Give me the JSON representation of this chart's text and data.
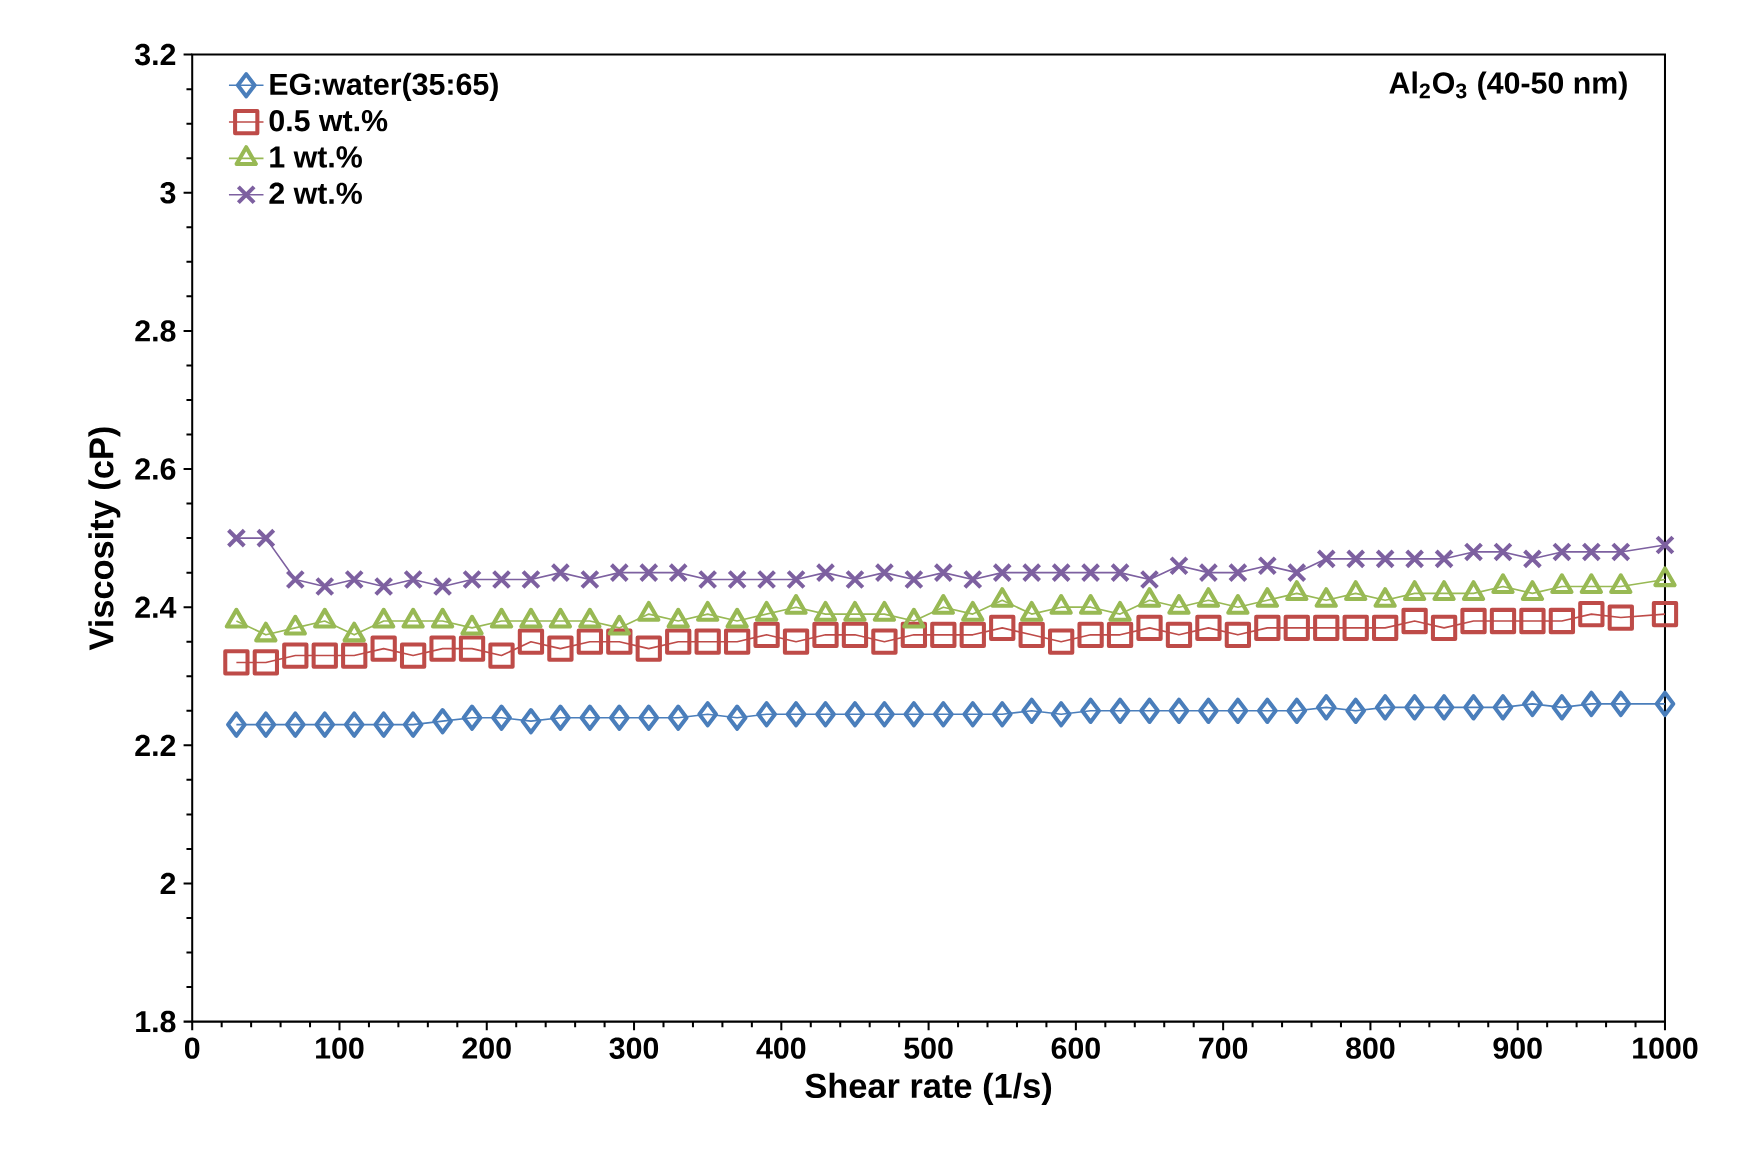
{
  "chart_data": {
    "type": "line",
    "xlabel": "Shear rate (1/s)",
    "ylabel": "Viscosity (cP)",
    "annotations": [
      "Al$_{2}$O$_{3}$ (40-50 nm)"
    ],
    "x": [
      30,
      50,
      70,
      90,
      110,
      130,
      150,
      170,
      190,
      210,
      230,
      250,
      270,
      290,
      310,
      330,
      350,
      370,
      390,
      410,
      430,
      450,
      470,
      490,
      510,
      530,
      550,
      570,
      590,
      610,
      630,
      650,
      670,
      690,
      710,
      730,
      750,
      770,
      790,
      810,
      830,
      850,
      870,
      890,
      910,
      930,
      950,
      970,
      1000
    ],
    "series": [
      {
        "name": "EG:water(35:65)",
        "color": "#4a7ebb",
        "marker": "diamond",
        "values": [
          2.23,
          2.23,
          2.23,
          2.23,
          2.23,
          2.23,
          2.23,
          2.235,
          2.24,
          2.24,
          2.235,
          2.24,
          2.24,
          2.24,
          2.24,
          2.24,
          2.245,
          2.24,
          2.245,
          2.245,
          2.245,
          2.245,
          2.245,
          2.245,
          2.245,
          2.245,
          2.245,
          2.25,
          2.245,
          2.25,
          2.25,
          2.25,
          2.25,
          2.25,
          2.25,
          2.25,
          2.25,
          2.255,
          2.25,
          2.255,
          2.255,
          2.255,
          2.255,
          2.255,
          2.26,
          2.255,
          2.26,
          2.26,
          2.26
        ]
      },
      {
        "name": "0.5 wt.%",
        "color": "#be4b48",
        "marker": "square",
        "values": [
          2.32,
          2.32,
          2.33,
          2.33,
          2.33,
          2.34,
          2.33,
          2.34,
          2.34,
          2.33,
          2.35,
          2.34,
          2.35,
          2.35,
          2.34,
          2.35,
          2.35,
          2.35,
          2.36,
          2.35,
          2.36,
          2.36,
          2.35,
          2.36,
          2.36,
          2.36,
          2.37,
          2.36,
          2.35,
          2.36,
          2.36,
          2.37,
          2.36,
          2.37,
          2.36,
          2.37,
          2.37,
          2.37,
          2.37,
          2.37,
          2.38,
          2.37,
          2.38,
          2.38,
          2.38,
          2.38,
          2.39,
          2.385,
          2.39
        ]
      },
      {
        "name": "1 wt.%",
        "color": "#98b954",
        "marker": "triangle",
        "values": [
          2.38,
          2.36,
          2.37,
          2.38,
          2.36,
          2.38,
          2.38,
          2.38,
          2.37,
          2.38,
          2.38,
          2.38,
          2.38,
          2.37,
          2.39,
          2.38,
          2.39,
          2.38,
          2.39,
          2.4,
          2.39,
          2.39,
          2.39,
          2.38,
          2.4,
          2.39,
          2.41,
          2.39,
          2.4,
          2.4,
          2.39,
          2.41,
          2.4,
          2.41,
          2.4,
          2.41,
          2.42,
          2.41,
          2.42,
          2.41,
          2.42,
          2.42,
          2.42,
          2.43,
          2.42,
          2.43,
          2.43,
          2.43,
          2.44
        ]
      },
      {
        "name": "2 wt.%",
        "color": "#7d60a0",
        "marker": "cross",
        "values": [
          2.5,
          2.5,
          2.44,
          2.43,
          2.44,
          2.43,
          2.44,
          2.43,
          2.44,
          2.44,
          2.44,
          2.45,
          2.44,
          2.45,
          2.45,
          2.45,
          2.44,
          2.44,
          2.44,
          2.44,
          2.45,
          2.44,
          2.45,
          2.44,
          2.45,
          2.44,
          2.45,
          2.45,
          2.45,
          2.45,
          2.45,
          2.44,
          2.46,
          2.45,
          2.45,
          2.46,
          2.45,
          2.47,
          2.47,
          2.47,
          2.47,
          2.47,
          2.48,
          2.48,
          2.47,
          2.48,
          2.48,
          2.48,
          2.49
        ]
      }
    ],
    "xlim": [
      0,
      1000
    ],
    "xticks": [
      0,
      100,
      200,
      300,
      400,
      500,
      600,
      700,
      800,
      900,
      1000
    ],
    "ylim": [
      1.8,
      3.2
    ],
    "yticks": [
      1.8,
      2,
      2.2,
      2.4,
      2.6,
      2.8,
      3,
      3.2
    ],
    "grid": false,
    "legend": "top left",
    "line_style": "solid"
  }
}
